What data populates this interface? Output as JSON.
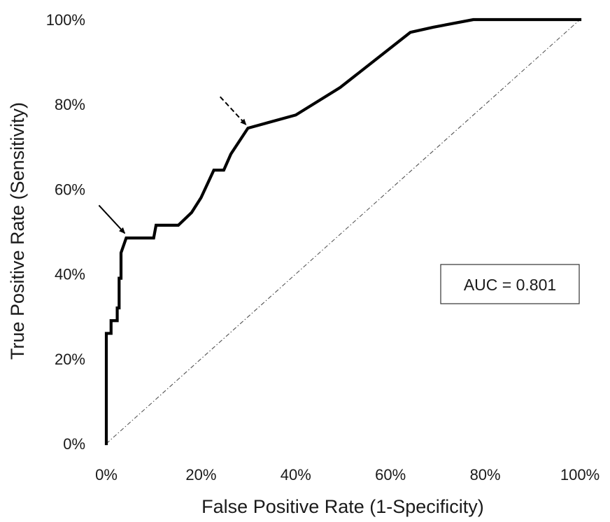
{
  "chart_data": {
    "type": "line",
    "xlabel": "False Positive Rate (1-Specificity)",
    "ylabel": "True Positive Rate (Sensitivity)",
    "xlim": [
      0,
      100
    ],
    "ylim": [
      0,
      100
    ],
    "x_ticks": [
      "0%",
      "20%",
      "40%",
      "60%",
      "80%",
      "100%"
    ],
    "y_ticks": [
      "0%",
      "20%",
      "40%",
      "60%",
      "80%",
      "100%"
    ],
    "grid": false,
    "legend": "none",
    "annotation": "AUC = 0.801",
    "series": [
      {
        "x": [
          0,
          0,
          1,
          1,
          2.3,
          2.3,
          2.7,
          2.7,
          3.1,
          3.1,
          4.2,
          10,
          10.5,
          15.2,
          18,
          20,
          22.7,
          24.8,
          26.3,
          29.9,
          40,
          49.4,
          64.2,
          69,
          77.5,
          100
        ],
        "y": [
          0,
          26,
          26,
          29,
          29,
          32,
          32,
          39,
          39,
          45,
          48.5,
          48.5,
          51.5,
          51.5,
          54.5,
          58,
          64.5,
          64.5,
          68.3,
          74.4,
          77.5,
          84,
          97,
          98.2,
          100,
          100
        ],
        "color": "#000000"
      },
      {
        "x": [
          0,
          100
        ],
        "y": [
          0,
          100
        ],
        "style": "dash-dot",
        "color": "#555555"
      }
    ],
    "arrows": [
      {
        "style": "solid",
        "at": [
          3.9,
          49.6
        ]
      },
      {
        "style": "dashed",
        "at": [
          29.5,
          75.2
        ]
      }
    ]
  }
}
